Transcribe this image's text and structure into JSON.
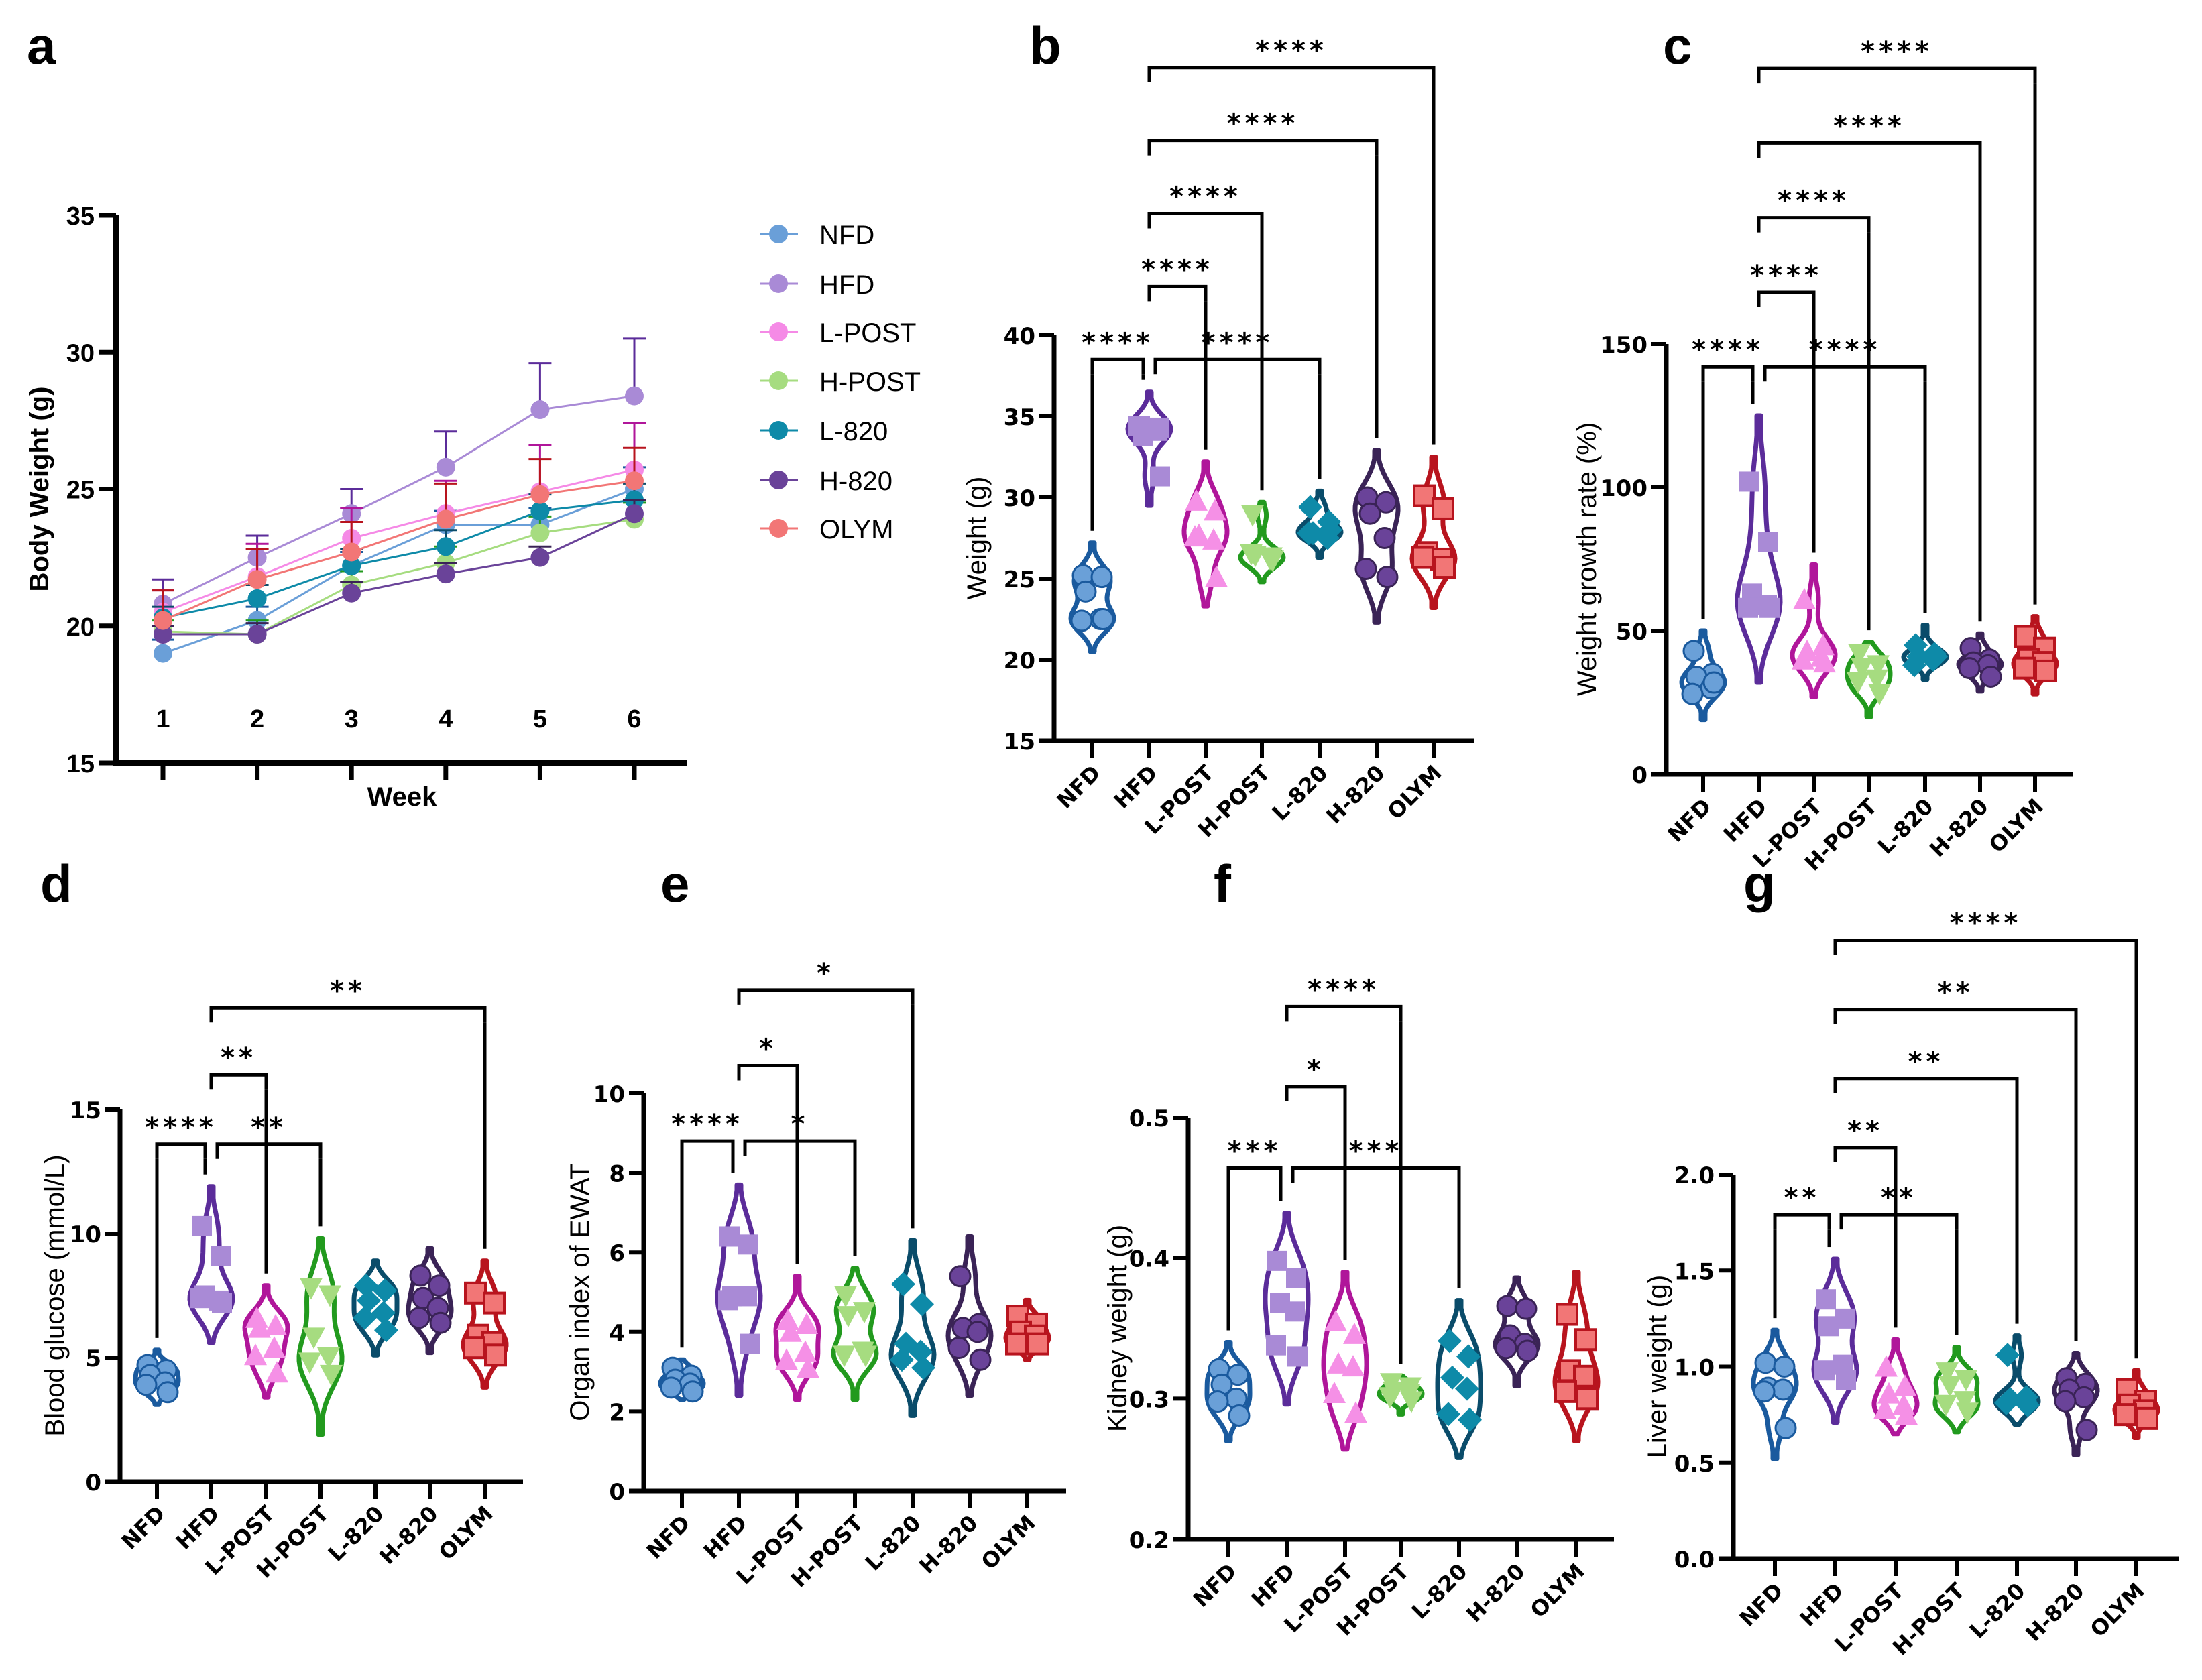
{
  "groups": [
    "NFD",
    "HFD",
    "L-POST",
    "H-POST",
    "L-820",
    "H-820",
    "OLYM"
  ],
  "colors": {
    "NFD": {
      "fill": "#6aa0d8",
      "line": "#1a5a9e"
    },
    "HFD": {
      "fill": "#a98ad6",
      "line": "#5b2c9a"
    },
    "L-POST": {
      "fill": "#f590e6",
      "line": "#b0169a"
    },
    "H-POST": {
      "fill": "#a6dc80",
      "line": "#229a1e"
    },
    "L-820": {
      "fill": "#0e8aa8",
      "line": "#0a4c6a"
    },
    "H-820": {
      "fill": "#6a4399",
      "line": "#3a2356"
    },
    "OLYM": {
      "fill": "#f27676",
      "line": "#b8141e"
    }
  },
  "markers": {
    "NFD": "circle",
    "HFD": "square",
    "L-POST": "triangle-up",
    "H-POST": "triangle-down",
    "L-820": "diamond",
    "H-820": "circle",
    "OLYM": "square-outlined"
  },
  "chart_data": [
    {
      "panel": "a",
      "type": "line",
      "xlabel": "Week",
      "ylabel": "Body Weight (g)",
      "ylim": [
        15,
        35
      ],
      "yticks": [
        15,
        20,
        25,
        30,
        35
      ],
      "x": [
        1,
        2,
        3,
        4,
        5,
        6
      ],
      "legend_position": "right",
      "series": [
        {
          "name": "NFD",
          "color": "#6a9fd8",
          "values": [
            19.0,
            20.2,
            22.2,
            23.7,
            23.7,
            25.0
          ],
          "err": [
            0.5,
            0.5,
            0.5,
            0.5,
            0.6,
            0.8
          ]
        },
        {
          "name": "HFD",
          "color": "#a98ad6",
          "values": [
            20.8,
            22.5,
            24.1,
            25.8,
            27.9,
            28.4
          ],
          "err": [
            0.9,
            0.8,
            0.9,
            1.3,
            1.7,
            2.1
          ]
        },
        {
          "name": "L-POST",
          "color": "#f58ae6",
          "values": [
            20.5,
            21.8,
            23.2,
            24.1,
            24.9,
            25.7
          ],
          "err": [
            0.8,
            1.2,
            1.1,
            1.2,
            1.7,
            1.7
          ]
        },
        {
          "name": "H-POST",
          "color": "#a6dc80",
          "values": [
            19.8,
            19.7,
            21.5,
            22.3,
            23.4,
            23.9
          ],
          "err": [
            0.4,
            0.5,
            0.5,
            0.6,
            0.6,
            0.6
          ]
        },
        {
          "name": "L-820",
          "color": "#0e8aa8",
          "values": [
            20.3,
            21.0,
            22.2,
            22.9,
            24.2,
            24.6
          ],
          "err": [
            0.4,
            0.5,
            0.6,
            0.6,
            0.6,
            0.6
          ]
        },
        {
          "name": "H-820",
          "color": "#6a4399",
          "values": [
            19.7,
            19.7,
            21.2,
            21.9,
            22.5,
            24.1
          ],
          "err": [
            0.3,
            0.4,
            0.4,
            0.4,
            0.4,
            0.5
          ]
        },
        {
          "name": "OLYM",
          "color": "#f27676",
          "values": [
            20.2,
            21.7,
            22.7,
            23.9,
            24.8,
            25.3
          ],
          "err": [
            1.1,
            1.1,
            1.1,
            1.3,
            1.3,
            1.2
          ]
        }
      ]
    },
    {
      "panel": "b",
      "type": "violin",
      "ylabel": "Weight (g)",
      "ylim": [
        15,
        40
      ],
      "yticks": [
        15,
        20,
        25,
        30,
        35,
        40
      ],
      "violin_range": {
        "NFD": [
          20.5,
          27.2
        ],
        "HFD": [
          29.5,
          36.5
        ],
        "L-POST": [
          23.3,
          32.2
        ],
        "H-POST": [
          24.8,
          29.7
        ],
        "L-820": [
          26.3,
          30.4
        ],
        "H-820": [
          22.3,
          32.9
        ],
        "OLYM": [
          23.2,
          32.5
        ]
      },
      "points": {
        "NFD": [
          25.2,
          25.1,
          24.2,
          22.5,
          22.4,
          22.5
        ],
        "HFD": [
          34.4,
          34.3,
          33.8,
          34.1,
          34.4,
          31.3
        ],
        "L-POST": [
          29.8,
          29.2,
          27.7,
          27.4,
          27.6,
          25.1
        ],
        "H-POST": [
          28.9,
          26.3,
          26.4,
          26.2,
          26.5,
          26.1
        ],
        "L-820": [
          29.4,
          28.5,
          27.8,
          27.5,
          27.8,
          28.0
        ],
        "H-820": [
          30.0,
          29.7,
          29.0,
          27.5,
          25.6,
          25.1
        ],
        "OLYM": [
          30.1,
          29.3,
          26.6,
          26.2,
          26.3,
          25.7
        ]
      },
      "comparisons": [
        {
          "a": "NFD",
          "b": "HFD",
          "label": "****",
          "y": 38.5
        },
        {
          "a": "HFD",
          "b": "L-820",
          "label": "****",
          "y": 38.5
        },
        {
          "a": "HFD",
          "b": "L-POST",
          "label": "****",
          "y": 43.0
        },
        {
          "a": "HFD",
          "b": "H-POST",
          "label": "****",
          "y": 47.5
        },
        {
          "a": "HFD",
          "b": "H-820",
          "label": "****",
          "y": 52.0
        },
        {
          "a": "HFD",
          "b": "OLYM",
          "label": "****",
          "y": 56.5
        }
      ]
    },
    {
      "panel": "c",
      "type": "violin",
      "ylabel": "Weight growth rate (%)",
      "ylim": [
        0,
        150
      ],
      "yticks": [
        0,
        50,
        100,
        150
      ],
      "violin_range": {
        "NFD": [
          19,
          50
        ],
        "HFD": [
          32,
          125
        ],
        "L-POST": [
          27,
          73
        ],
        "H-POST": [
          20,
          46
        ],
        "L-820": [
          33,
          52
        ],
        "H-820": [
          29,
          49
        ],
        "OLYM": [
          28,
          55
        ]
      },
      "points": {
        "NFD": [
          43,
          35,
          34,
          30,
          28,
          32
        ],
        "HFD": [
          102,
          81,
          63,
          59,
          58,
          58
        ],
        "L-POST": [
          61,
          45,
          43,
          41,
          40,
          39
        ],
        "H-POST": [
          42,
          38,
          37,
          33,
          32,
          28
        ],
        "L-820": [
          45,
          42,
          41,
          40,
          38,
          41
        ],
        "H-820": [
          44,
          40,
          39,
          38,
          37,
          34
        ],
        "OLYM": [
          48,
          44,
          40,
          39,
          37,
          36
        ]
      },
      "comparisons": [
        {
          "a": "NFD",
          "b": "HFD",
          "label": "****",
          "y": 142
        },
        {
          "a": "HFD",
          "b": "L-820",
          "label": "****",
          "y": 142
        },
        {
          "a": "HFD",
          "b": "L-POST",
          "label": "****",
          "y": 168
        },
        {
          "a": "HFD",
          "b": "H-POST",
          "label": "****",
          "y": 194
        },
        {
          "a": "HFD",
          "b": "H-820",
          "label": "****",
          "y": 220
        },
        {
          "a": "HFD",
          "b": "OLYM",
          "label": "****",
          "y": 246
        }
      ]
    },
    {
      "panel": "d",
      "type": "violin",
      "ylabel": "Blood glucose (mmol/L)",
      "ylim": [
        0,
        15
      ],
      "yticks": [
        0,
        5,
        10,
        15
      ],
      "violin_range": {
        "NFD": [
          3.1,
          5.3
        ],
        "HFD": [
          5.6,
          11.9
        ],
        "L-POST": [
          3.4,
          7.9
        ],
        "H-POST": [
          1.9,
          9.8
        ],
        "L-820": [
          5.1,
          8.9
        ],
        "H-820": [
          5.2,
          9.4
        ],
        "OLYM": [
          3.8,
          8.9
        ]
      },
      "points": {
        "NFD": [
          4.7,
          4.5,
          4.3,
          4.0,
          3.9,
          3.6
        ],
        "HFD": [
          10.3,
          9.1,
          7.5,
          7.3,
          7.4,
          7.2
        ],
        "L-POST": [
          6.6,
          6.3,
          6.2,
          5.4,
          5.1,
          4.4
        ],
        "H-POST": [
          7.8,
          7.5,
          5.8,
          5.0,
          4.8,
          4.3
        ],
        "L-820": [
          7.9,
          7.7,
          7.3,
          6.8,
          6.6,
          6.1
        ],
        "H-820": [
          8.3,
          7.9,
          7.4,
          7.0,
          6.6,
          6.4
        ],
        "OLYM": [
          7.6,
          7.2,
          5.9,
          5.6,
          5.4,
          5.1
        ]
      },
      "comparisons": [
        {
          "a": "NFD",
          "b": "HFD",
          "label": "****",
          "y": 13.6
        },
        {
          "a": "HFD",
          "b": "H-POST",
          "label": "**",
          "y": 13.6
        },
        {
          "a": "HFD",
          "b": "L-POST",
          "label": "**",
          "y": 16.4
        },
        {
          "a": "HFD",
          "b": "OLYM",
          "label": "**",
          "y": 19.1
        }
      ]
    },
    {
      "panel": "e",
      "type": "violin",
      "ylabel": "Organ index of EWAT",
      "ylim": [
        0,
        10
      ],
      "yticks": [
        0,
        2,
        4,
        6,
        8,
        10
      ],
      "violin_range": {
        "NFD": [
          2.3,
          3.3
        ],
        "HFD": [
          2.4,
          7.7
        ],
        "L-POST": [
          2.3,
          5.4
        ],
        "H-POST": [
          2.3,
          5.6
        ],
        "L-820": [
          1.9,
          6.3
        ],
        "H-820": [
          2.4,
          6.4
        ],
        "OLYM": [
          3.3,
          4.8
        ]
      },
      "points": {
        "NFD": [
          3.1,
          2.9,
          2.8,
          2.7,
          2.6,
          2.5
        ],
        "HFD": [
          6.4,
          6.2,
          4.9,
          4.9,
          4.8,
          3.7
        ],
        "L-POST": [
          4.3,
          4.2,
          4.0,
          3.5,
          3.3,
          3.1
        ],
        "H-POST": [
          4.9,
          4.5,
          4.4,
          3.5,
          3.4,
          3.4
        ],
        "L-820": [
          5.2,
          4.7,
          3.7,
          3.5,
          3.3,
          3.1
        ],
        "H-820": [
          5.4,
          4.2,
          4.1,
          4.0,
          3.6,
          3.3
        ],
        "OLYM": [
          4.4,
          4.2,
          4.0,
          3.9,
          3.7,
          3.7
        ]
      },
      "comparisons": [
        {
          "a": "NFD",
          "b": "HFD",
          "label": "****",
          "y": 8.8
        },
        {
          "a": "HFD",
          "b": "H-POST",
          "label": "*",
          "y": 8.8
        },
        {
          "a": "HFD",
          "b": "L-POST",
          "label": "*",
          "y": 10.7
        },
        {
          "a": "HFD",
          "b": "L-820",
          "label": "*",
          "y": 12.6
        }
      ]
    },
    {
      "panel": "f",
      "type": "violin",
      "ylabel": "Kidney weight (g)",
      "ylim": [
        0.2,
        0.5
      ],
      "yticks": [
        0.2,
        0.3,
        0.4,
        0.5
      ],
      "violin_range": {
        "NFD": [
          0.27,
          0.34
        ],
        "HFD": [
          0.296,
          0.432
        ],
        "L-POST": [
          0.264,
          0.39
        ],
        "H-POST": [
          0.289,
          0.316
        ],
        "L-820": [
          0.258,
          0.37
        ],
        "H-820": [
          0.309,
          0.386
        ],
        "OLYM": [
          0.27,
          0.39
        ]
      },
      "points": {
        "NFD": [
          0.321,
          0.317,
          0.31,
          0.3,
          0.298,
          0.288
        ],
        "HFD": [
          0.398,
          0.386,
          0.368,
          0.362,
          0.338,
          0.33
        ],
        "L-POST": [
          0.355,
          0.346,
          0.325,
          0.323,
          0.304,
          0.29
        ],
        "H-POST": [
          0.311,
          0.308,
          0.305,
          0.303,
          0.301,
          0.298
        ],
        "L-820": [
          0.341,
          0.33,
          0.315,
          0.307,
          0.289,
          0.285
        ],
        "H-820": [
          0.366,
          0.364,
          0.345,
          0.339,
          0.336,
          0.334
        ],
        "OLYM": [
          0.36,
          0.342,
          0.32,
          0.316,
          0.305,
          0.3
        ]
      },
      "comparisons": [
        {
          "a": "NFD",
          "b": "HFD",
          "label": "***",
          "y": 0.464
        },
        {
          "a": "HFD",
          "b": "L-820",
          "label": "***",
          "y": 0.464
        },
        {
          "a": "HFD",
          "b": "L-POST",
          "label": "*",
          "y": 0.522
        },
        {
          "a": "HFD",
          "b": "H-POST",
          "label": "****",
          "y": 0.579
        }
      ]
    },
    {
      "panel": "g",
      "type": "violin",
      "ylabel": "Liver weight (g)",
      "ylim": [
        0.0,
        2.0
      ],
      "yticks": [
        0.0,
        0.5,
        1.0,
        1.5,
        2.0
      ],
      "violin_range": {
        "NFD": [
          0.52,
          1.19
        ],
        "HFD": [
          0.71,
          1.56
        ],
        "L-POST": [
          0.65,
          1.14
        ],
        "H-POST": [
          0.66,
          1.1
        ],
        "L-820": [
          0.7,
          1.16
        ],
        "H-820": [
          0.54,
          1.07
        ],
        "OLYM": [
          0.63,
          0.98
        ]
      },
      "points": {
        "NFD": [
          1.02,
          1.0,
          0.89,
          0.88,
          0.87,
          0.68
        ],
        "HFD": [
          1.35,
          1.25,
          1.21,
          1.01,
          0.98,
          0.93
        ],
        "L-POST": [
          1.0,
          0.9,
          0.86,
          0.8,
          0.78,
          0.75
        ],
        "H-POST": [
          0.97,
          0.93,
          0.9,
          0.82,
          0.8,
          0.76
        ],
        "L-820": [
          1.06,
          0.84,
          0.83,
          0.82,
          0.81,
          0.8
        ],
        "H-820": [
          0.94,
          0.91,
          0.88,
          0.84,
          0.82,
          0.67
        ],
        "OLYM": [
          0.88,
          0.82,
          0.8,
          0.77,
          0.75,
          0.73
        ]
      },
      "comparisons": [
        {
          "a": "NFD",
          "b": "HFD",
          "label": "**",
          "y": 1.79
        },
        {
          "a": "HFD",
          "b": "H-POST",
          "label": "**",
          "y": 1.79
        },
        {
          "a": "HFD",
          "b": "L-POST",
          "label": "**",
          "y": 2.14
        },
        {
          "a": "HFD",
          "b": "L-820",
          "label": "**",
          "y": 2.5
        },
        {
          "a": "HFD",
          "b": "H-820",
          "label": "**",
          "y": 2.86
        },
        {
          "a": "HFD",
          "b": "OLYM",
          "label": "****",
          "y": 3.22
        }
      ]
    }
  ]
}
